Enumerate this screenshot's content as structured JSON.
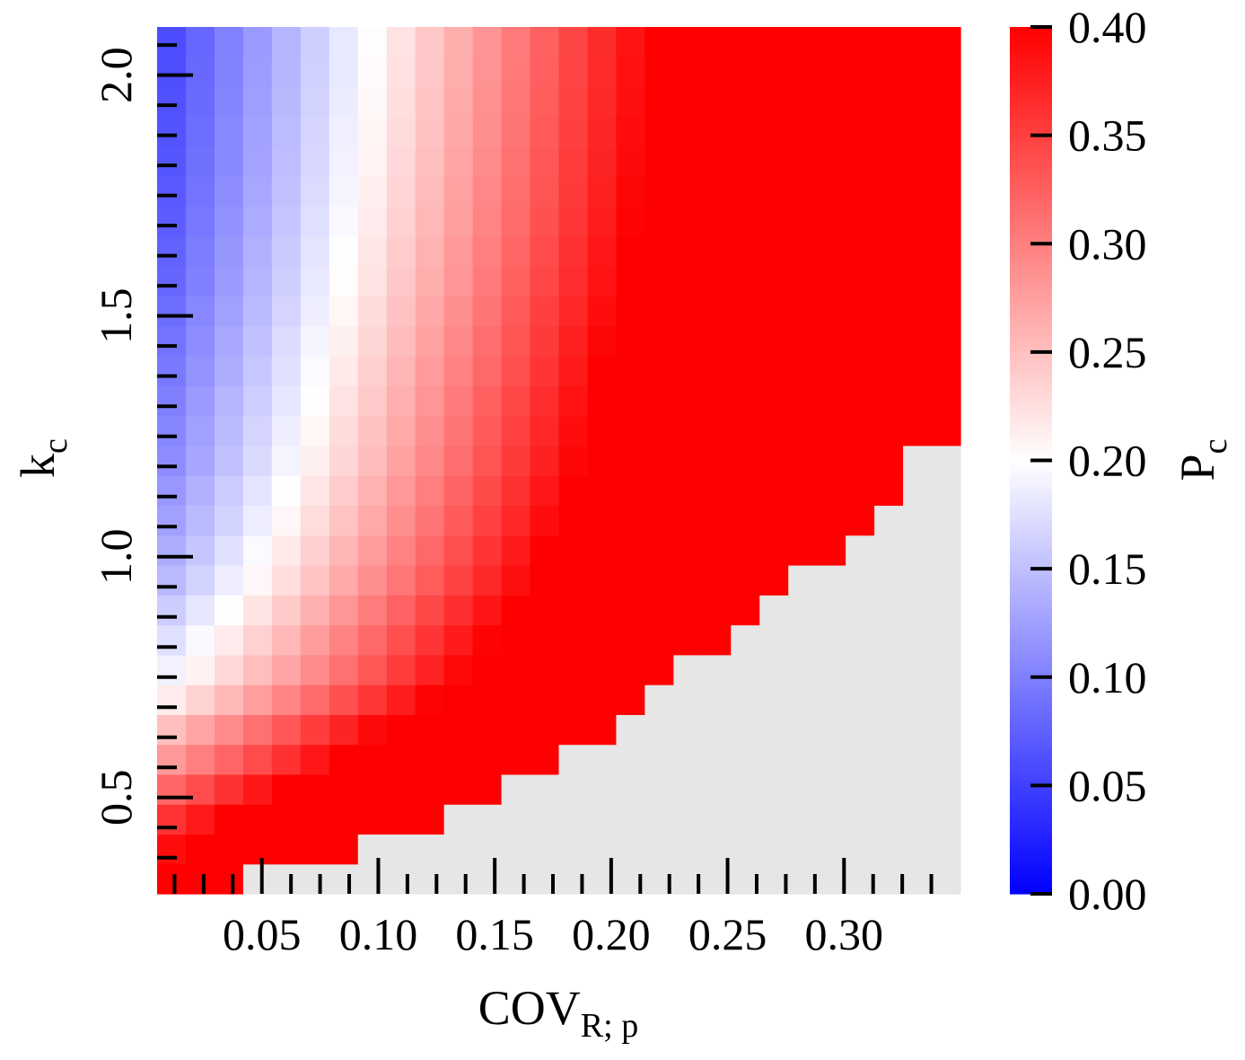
{
  "chart_data": {
    "type": "heatmap",
    "xlabel": "COV",
    "xlabel_sub": "R; p",
    "ylabel": "k",
    "ylabel_sub": "c",
    "colorbar_label": "P",
    "colorbar_label_sub": "c",
    "x_range": [
      0.005,
      0.35
    ],
    "y_range": [
      0.3,
      2.1
    ],
    "x_cells": 28,
    "y_cells": 29,
    "x_tick_values": [
      0.05,
      0.1,
      0.15,
      0.2,
      0.25,
      0.3
    ],
    "x_tick_labels": [
      "0.05",
      "0.10",
      "0.15",
      "0.20",
      "0.25",
      "0.30"
    ],
    "y_tick_values": [
      0.5,
      1.0,
      1.5,
      2.0
    ],
    "y_tick_labels": [
      "0.5",
      "1.0",
      "1.5",
      "2.0"
    ],
    "colorbar_range": [
      0.0,
      0.4
    ],
    "colorbar_tick_values": [
      0.0,
      0.05,
      0.1,
      0.15,
      0.2,
      0.25,
      0.3,
      0.35,
      0.4
    ],
    "colorbar_tick_labels": [
      "0.00",
      "0.05",
      "0.10",
      "0.15",
      "0.20",
      "0.25",
      "0.30",
      "0.35",
      "0.40"
    ],
    "colormap": {
      "low": "#0000ff",
      "mid": "#ffffff",
      "high": "#ff0000"
    },
    "missing_color": "#e6e6e6",
    "valid_region_max_x_by_row_from_bottom": [
      0.045,
      0.09,
      0.13,
      0.155,
      0.18,
      0.205,
      0.215,
      0.23,
      0.255,
      0.265,
      0.28,
      0.295,
      0.31,
      0.32,
      0.325,
      0.35,
      0.35,
      0.35,
      0.35,
      0.35,
      0.35,
      0.35,
      0.35,
      0.35,
      0.35,
      0.35,
      0.35,
      0.35,
      0.35
    ],
    "row_values_at_min_x_from_bottom": [
      0.4,
      0.38,
      0.35,
      0.31,
      0.27,
      0.24,
      0.205,
      0.18,
      0.165,
      0.15,
      0.135,
      0.125,
      0.115,
      0.108,
      0.1,
      0.095,
      0.09,
      0.085,
      0.08,
      0.075,
      0.07,
      0.067,
      0.063,
      0.06,
      0.057,
      0.055,
      0.053,
      0.051,
      0.05
    ],
    "approx_value_change_per_unit_x": 1.65
  }
}
